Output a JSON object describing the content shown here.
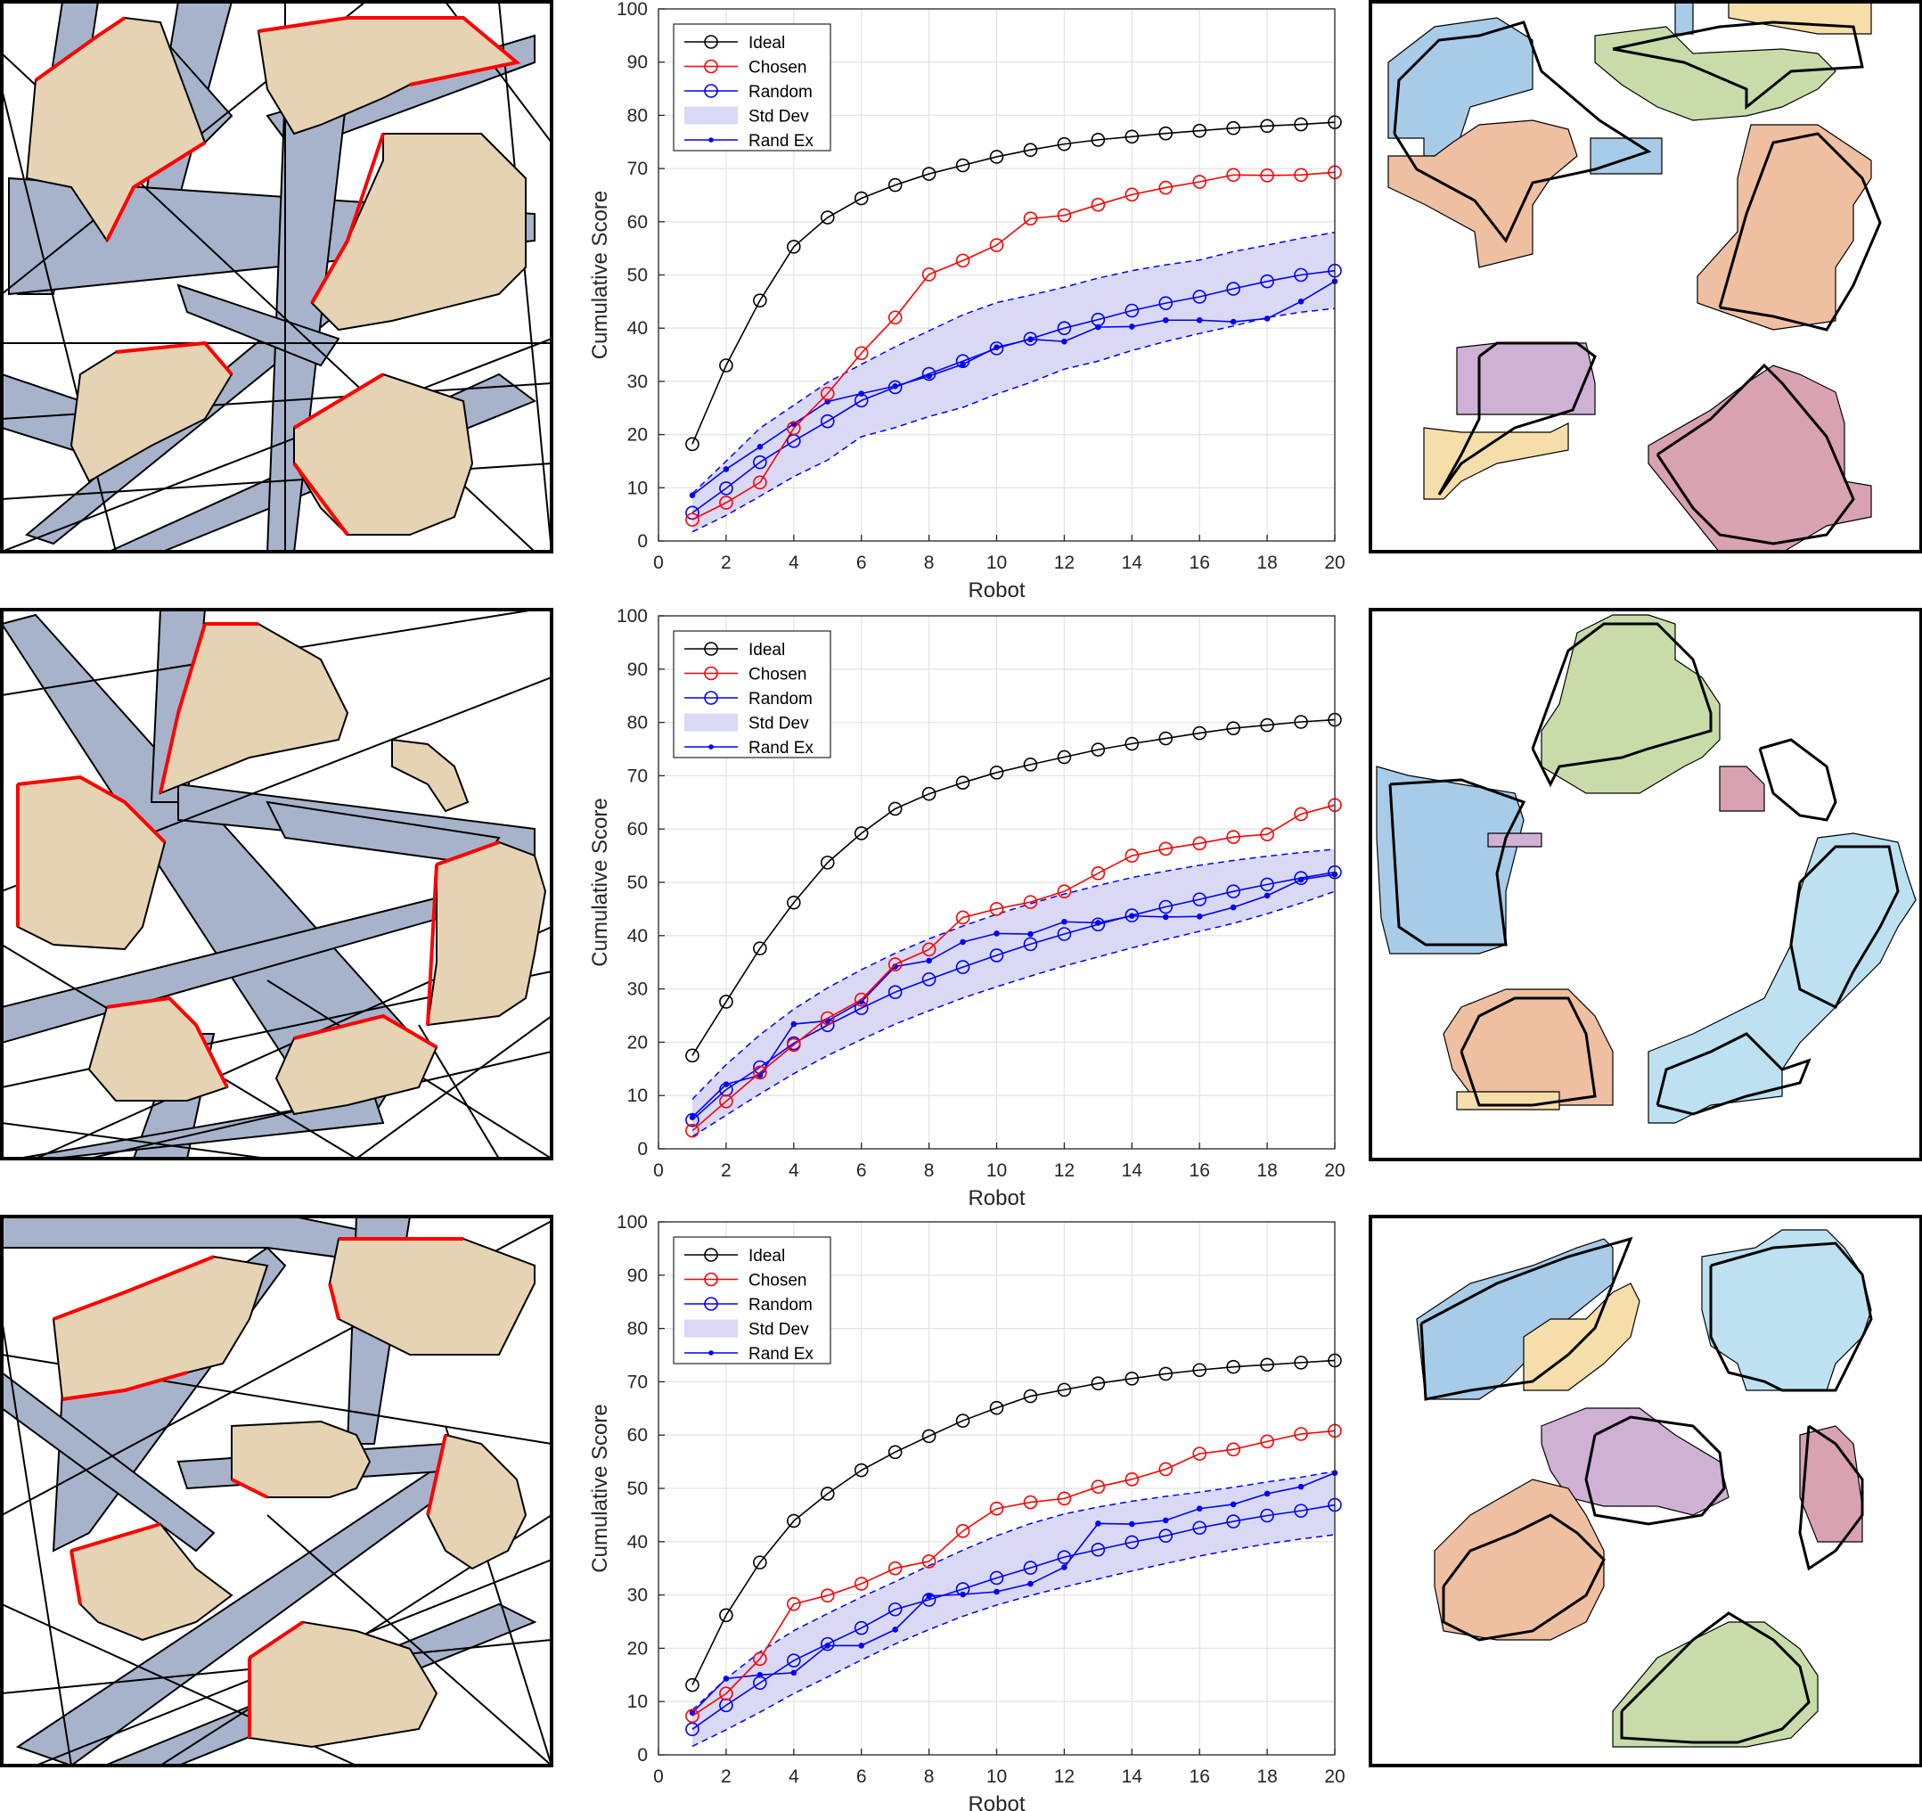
{
  "colors": {
    "ideal": "#000000",
    "chosen": "#ff0000",
    "random": "#0000ff",
    "std_fill": "#d9d9f5",
    "obstacle_fill": "#e5d3b3",
    "sweep_fill": "#a7b3ca"
  },
  "chart_data": [
    {
      "type": "line",
      "xlabel": "Robot",
      "ylabel": "Cumulative Score",
      "xlim": [
        0,
        20
      ],
      "ylim": [
        0,
        100
      ],
      "xticks": [
        "0",
        "2",
        "4",
        "6",
        "8",
        "10",
        "12",
        "14",
        "16",
        "18",
        "20"
      ],
      "yticks": [
        "0",
        "10",
        "20",
        "30",
        "40",
        "50",
        "60",
        "70",
        "80",
        "90",
        "100"
      ],
      "grid": true,
      "legend_position": "top-left",
      "x": [
        1,
        2,
        3,
        4,
        5,
        6,
        7,
        8,
        9,
        10,
        11,
        12,
        13,
        14,
        15,
        16,
        17,
        18,
        19,
        20
      ],
      "series": [
        {
          "name": "Ideal",
          "values": [
            18.2,
            33,
            45.2,
            55.3,
            60.8,
            64.4,
            66.9,
            69,
            70.6,
            72.2,
            73.5,
            74.6,
            75.4,
            76,
            76.6,
            77.1,
            77.6,
            78,
            78.3,
            78.7
          ]
        },
        {
          "name": "Chosen",
          "values": [
            4,
            7.2,
            11,
            21.2,
            27.7,
            35.3,
            42,
            50.1,
            52.7,
            55.6,
            60.6,
            61.2,
            63.2,
            65.1,
            66.4,
            67.5,
            68.8,
            68.7,
            68.8,
            69.3
          ]
        },
        {
          "name": "Random",
          "values": [
            5.3,
            9.9,
            14.8,
            18.8,
            22.5,
            26.4,
            28.9,
            31.4,
            33.8,
            36.2,
            38,
            40,
            41.6,
            43.3,
            44.7,
            45.9,
            47.4,
            48.8,
            50,
            50.8
          ]
        },
        {
          "name": "Rand Ex",
          "values": [
            8.6,
            13.5,
            17.7,
            22,
            26.2,
            27.7,
            29.1,
            31,
            33.2,
            36.4,
            37.9,
            37.5,
            40.2,
            40.3,
            41.5,
            41.5,
            41.2,
            41.8,
            45,
            48.8
          ]
        }
      ],
      "std_upper": [
        8.9,
        15,
        21.2,
        25.5,
        29.8,
        33.2,
        36.5,
        39.5,
        42.5,
        44.8,
        46.2,
        47.7,
        49.4,
        50.8,
        51.9,
        52.8,
        54.4,
        55.6,
        56.9,
        58
      ],
      "std_lower": [
        1.7,
        4.8,
        8.4,
        12.1,
        15.2,
        19.6,
        21.3,
        23.4,
        25.1,
        27.6,
        29.8,
        32.3,
        33.8,
        35.8,
        37.5,
        39,
        40.4,
        42,
        43,
        43.7
      ]
    },
    {
      "type": "line",
      "xlabel": "Robot",
      "ylabel": "Cumulative Score",
      "xlim": [
        0,
        20
      ],
      "ylim": [
        0,
        100
      ],
      "xticks": [
        "0",
        "2",
        "4",
        "6",
        "8",
        "10",
        "12",
        "14",
        "16",
        "18",
        "20"
      ],
      "yticks": [
        "0",
        "10",
        "20",
        "30",
        "40",
        "50",
        "60",
        "70",
        "80",
        "90",
        "100"
      ],
      "grid": true,
      "legend_position": "top-left",
      "x": [
        1,
        2,
        3,
        4,
        5,
        6,
        7,
        8,
        9,
        10,
        11,
        12,
        13,
        14,
        15,
        16,
        17,
        18,
        19,
        20
      ],
      "series": [
        {
          "name": "Ideal",
          "values": [
            17.5,
            27.6,
            37.6,
            46.2,
            53.7,
            59.2,
            63.8,
            66.6,
            68.7,
            70.6,
            72.1,
            73.5,
            74.9,
            76,
            77,
            78,
            78.9,
            79.5,
            80.1,
            80.5
          ]
        },
        {
          "name": "Chosen",
          "values": [
            3.4,
            8.9,
            14.3,
            19.5,
            24.5,
            28,
            34.6,
            37.4,
            43.4,
            45,
            46.3,
            48.3,
            51.7,
            55,
            56.3,
            57.3,
            58.5,
            59,
            62.8,
            64.5
          ]
        },
        {
          "name": "Random",
          "values": [
            5.4,
            11.1,
            15.3,
            19.8,
            23.2,
            26.4,
            29.4,
            31.8,
            34.1,
            36.3,
            38.4,
            40.3,
            42.1,
            43.8,
            45.4,
            46.8,
            48.3,
            49.6,
            50.8,
            51.9
          ]
        },
        {
          "name": "Rand Ex",
          "values": [
            5.9,
            12.1,
            13.8,
            23.4,
            24,
            27.6,
            34.2,
            35.3,
            38.8,
            40.4,
            40.3,
            42.6,
            42.4,
            43.7,
            43.5,
            43.6,
            45.3,
            47.5,
            50.5,
            51.5
          ]
        }
      ],
      "std_upper": [
        9.3,
        15.8,
        21.4,
        26.2,
        30.2,
        33.6,
        36.7,
        39.4,
        41.8,
        44,
        46,
        47.8,
        49.4,
        50.9,
        52.1,
        53.2,
        54.1,
        54.9,
        55.6,
        56.2
      ],
      "std_lower": [
        2.3,
        6.3,
        10.3,
        14.1,
        17.5,
        20.5,
        23.4,
        25.9,
        28.3,
        30.4,
        32.4,
        34.3,
        36,
        37.7,
        39.3,
        40.8,
        42.3,
        44.1,
        46.1,
        48.3
      ]
    },
    {
      "type": "line",
      "xlabel": "Robot",
      "ylabel": "Cumulative Score",
      "xlim": [
        0,
        20
      ],
      "ylim": [
        0,
        100
      ],
      "xticks": [
        "0",
        "2",
        "4",
        "6",
        "8",
        "10",
        "12",
        "14",
        "16",
        "18",
        "20"
      ],
      "yticks": [
        "0",
        "10",
        "20",
        "30",
        "40",
        "50",
        "60",
        "70",
        "80",
        "90",
        "100"
      ],
      "grid": true,
      "legend_position": "top-left",
      "x": [
        1,
        2,
        3,
        4,
        5,
        6,
        7,
        8,
        9,
        10,
        11,
        12,
        13,
        14,
        15,
        16,
        17,
        18,
        19,
        20
      ],
      "series": [
        {
          "name": "Ideal",
          "values": [
            13.1,
            26.2,
            36.1,
            43.9,
            49,
            53.4,
            56.8,
            59.8,
            62.7,
            65.1,
            67.3,
            68.5,
            69.7,
            70.6,
            71.5,
            72.2,
            72.8,
            73.2,
            73.6,
            74
          ]
        },
        {
          "name": "Chosen",
          "values": [
            7.3,
            11.5,
            18,
            28.3,
            29.9,
            32.1,
            35,
            36.3,
            42,
            46.2,
            47.4,
            48.1,
            50.3,
            51.7,
            53.6,
            56.5,
            57.3,
            58.8,
            60.2,
            60.8
          ]
        },
        {
          "name": "Random",
          "values": [
            4.8,
            9.3,
            13.5,
            17.7,
            20.8,
            23.8,
            27.3,
            29.1,
            31.1,
            33.2,
            35.1,
            37.1,
            38.5,
            39.9,
            41.1,
            42.6,
            43.8,
            44.9,
            45.8,
            46.9
          ]
        },
        {
          "name": "Rand Ex",
          "values": [
            7.9,
            14.3,
            15,
            15.4,
            20.5,
            20.5,
            23.5,
            29.8,
            30.1,
            30.6,
            32.1,
            35.2,
            43.4,
            43.3,
            44,
            46.2,
            47,
            49,
            50.3,
            52.9
          ]
        }
      ],
      "std_upper": [
        8.4,
        14.3,
        19.3,
        23.3,
        26.5,
        29.6,
        32.5,
        35.5,
        38.4,
        41.1,
        43.4,
        45.2,
        46.5,
        47.6,
        48.5,
        49.3,
        50.2,
        51.2,
        52.1,
        53.2
      ],
      "std_lower": [
        1.6,
        4.7,
        8,
        11.5,
        14.6,
        17.8,
        20.8,
        23.5,
        26,
        28.1,
        29.9,
        31.5,
        33,
        34.5,
        35.9,
        37.3,
        38.5,
        39.6,
        40.5,
        41.3
      ]
    }
  ]
}
